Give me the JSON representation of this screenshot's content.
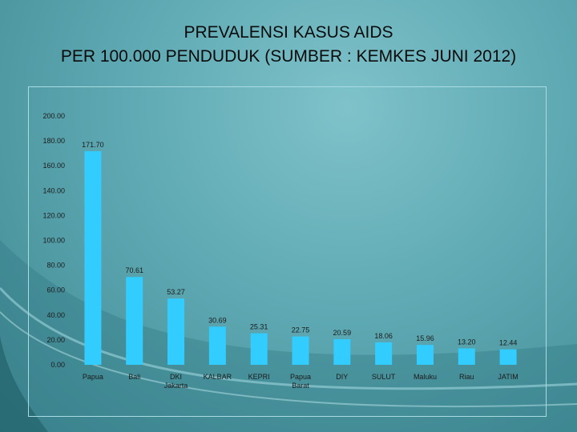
{
  "title_line1": "PREVALENSI KASUS AIDS",
  "title_line2": "PER 100.000 PENDUDUK (SUMBER : KEMKES JUNI 2012)",
  "colors": {
    "bar": "#33ccff",
    "text": "#111111"
  },
  "chart_data": {
    "type": "bar",
    "title": "PREVALENSI KASUS AIDS PER 100.000 PENDUDUK (SUMBER : KEMKES JUNI 2012)",
    "categories": [
      [
        "Papua"
      ],
      [
        "Bali"
      ],
      [
        "DKI",
        "Jakarta"
      ],
      [
        "KALBAR"
      ],
      [
        "KEPRI"
      ],
      [
        "Papua",
        "Barat"
      ],
      [
        "DIY"
      ],
      [
        "SULUT"
      ],
      [
        "Maluku"
      ],
      [
        "Riau"
      ],
      [
        "JATIM"
      ]
    ],
    "values": [
      171.7,
      70.61,
      53.27,
      30.69,
      25.31,
      22.75,
      20.59,
      18.06,
      15.96,
      13.2,
      12.44
    ],
    "value_labels": [
      "171.70",
      "70.61",
      "53.27",
      "30.69",
      "25.31",
      "22.75",
      "20.59",
      "18.06",
      "15.96",
      "13.20",
      "12.44"
    ],
    "ylim": [
      0,
      200
    ],
    "yticks": [
      "0.00",
      "20.00",
      "40.00",
      "60.00",
      "80.00",
      "100.00",
      "120.00",
      "140.00",
      "160.00",
      "180.00",
      "200.00"
    ],
    "xlabel": "",
    "ylabel": "",
    "grid": false,
    "legend": "none"
  }
}
